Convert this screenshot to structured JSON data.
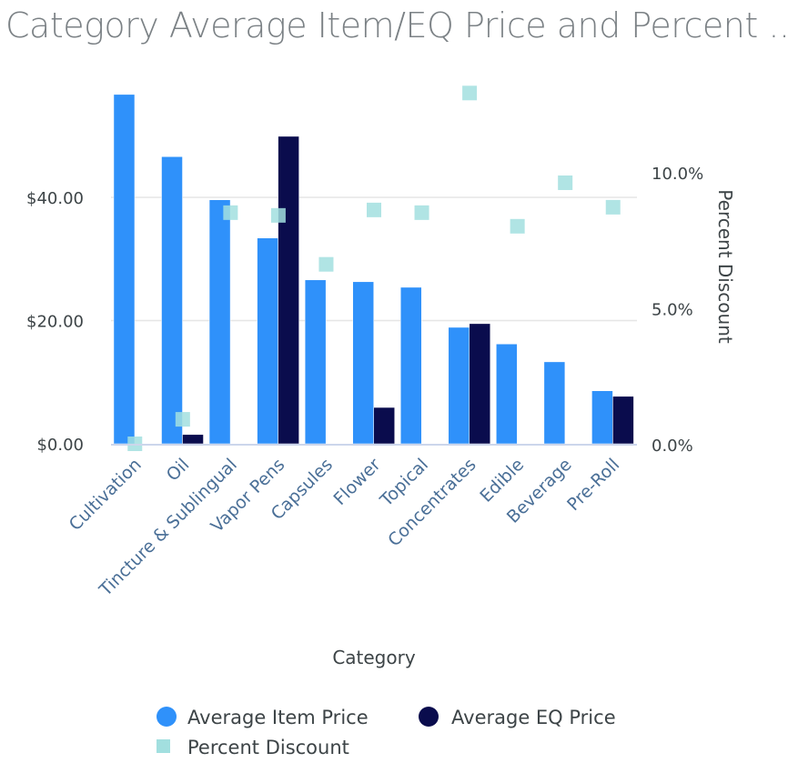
{
  "title": "Category Average Item/EQ Price and Percent ...",
  "colors": {
    "item_price": "#2f91fa",
    "eq_price": "#0a0c4d",
    "discount": "#a2dfdf",
    "grid": "#e6e6e6",
    "axis": "#ccd6eb"
  },
  "chart_data": {
    "type": "bar",
    "title": "Category Average Item/EQ Price and Percent ...",
    "xlabel": "Category",
    "ylabel": "",
    "y2label": "Percent Discount",
    "categories": [
      "Cultivation",
      "Oil",
      "Tincture & Sublingual",
      "Vapor Pens",
      "Capsules",
      "Flower",
      "Topical",
      "Concentrates",
      "Edible",
      "Beverage",
      "Pre-Roll"
    ],
    "series": [
      {
        "name": "Average Item Price",
        "type": "bar",
        "axis": "left",
        "values": [
          56.7,
          46.6,
          39.6,
          33.4,
          26.6,
          26.3,
          25.4,
          18.9,
          16.2,
          13.3,
          8.6
        ]
      },
      {
        "name": "Average EQ Price",
        "type": "bar",
        "axis": "left",
        "values": [
          null,
          1.5,
          null,
          49.9,
          null,
          5.9,
          null,
          19.5,
          null,
          null,
          7.7
        ]
      },
      {
        "name": "Percent Discount",
        "type": "scatter",
        "axis": "right",
        "values": [
          0.0,
          0.9,
          8.5,
          8.4,
          6.6,
          8.6,
          8.5,
          12.9,
          8.0,
          9.6,
          8.7
        ]
      }
    ],
    "ylim": [
      0,
      40
    ],
    "yticks": [
      "$0.00",
      "$20.00",
      "$40.00"
    ],
    "ytick_values": [
      0,
      20,
      40
    ],
    "y2lim": [
      0,
      10
    ],
    "y2ticks": [
      "0.0%",
      "5.0%",
      "10.0%"
    ],
    "y2tick_values": [
      0,
      5,
      10
    ],
    "grid": true,
    "legend_position": "bottom",
    "legend": [
      {
        "label": "Average Item Price",
        "symbol": "circle"
      },
      {
        "label": "Average EQ Price",
        "symbol": "circle"
      },
      {
        "label": "Percent Discount",
        "symbol": "square"
      }
    ]
  }
}
